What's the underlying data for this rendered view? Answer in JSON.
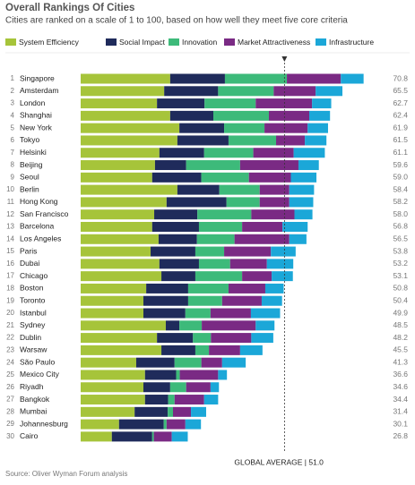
{
  "chart_data": {
    "type": "stacked_bar_horizontal",
    "title": "Overall Rankings Of Cities",
    "subtitle": "Cities are ranked on a scale of 1 to 100, based on how well they meet five core criteria",
    "source": "Source: Oliver Wyman Forum analysis",
    "ranks": [
      1,
      2,
      3,
      4,
      5,
      6,
      7,
      8,
      9,
      10,
      11,
      12,
      13,
      14,
      15,
      16,
      17,
      18,
      19,
      20,
      21,
      22,
      23,
      24,
      25,
      26,
      27,
      28,
      29,
      30
    ],
    "categories": [
      "Singapore",
      "Amsterdam",
      "London",
      "Shanghai",
      "New York",
      "Tokyo",
      "Helsinki",
      "Beijing",
      "Seoul",
      "Berlin",
      "Hong Kong",
      "San Francisco",
      "Barcelona",
      "Los Angeles",
      "Paris",
      "Dubai",
      "Chicago",
      "Boston",
      "Toronto",
      "Istanbul",
      "Sydney",
      "Dublin",
      "Warsaw",
      "São Paulo",
      "Mexico City",
      "Riyadh",
      "Bangkok",
      "Mumbai",
      "Johannesburg",
      "Cairo"
    ],
    "totals": [
      70.8,
      65.5,
      62.7,
      62.4,
      61.9,
      61.5,
      61.1,
      59.6,
      59.0,
      58.4,
      58.2,
      58.0,
      56.8,
      56.5,
      53.8,
      53.2,
      53.1,
      50.8,
      50.4,
      49.9,
      48.5,
      48.2,
      45.5,
      41.3,
      36.6,
      34.6,
      34.4,
      31.4,
      30.1,
      26.8
    ],
    "total_labels": [
      "70.8",
      "65.5",
      "62.7",
      "62.4",
      "61.9",
      "61.5",
      "61.1",
      "59.6",
      "59.0",
      "58.4",
      "58.2",
      "58.0",
      "56.8",
      "56.5",
      "53.8",
      "53.2",
      "53.1",
      "50.8",
      "50.4",
      "49.9",
      "48.5",
      "48.2",
      "45.5",
      "41.3",
      "36.6",
      "34.6",
      "34.4",
      "31.4",
      "30.1",
      "26.8"
    ],
    "series": [
      {
        "name": "System Efficiency",
        "color": "#a6c43a",
        "values": [
          22.4,
          20.9,
          19.1,
          22.4,
          24.7,
          24.2,
          19.7,
          18.6,
          17.9,
          24.2,
          21.5,
          18.4,
          17.9,
          19.5,
          17.5,
          19.7,
          20.2,
          16.4,
          15.7,
          15.7,
          21.3,
          19.1,
          20.2,
          13.9,
          16.1,
          15.7,
          16.1,
          13.5,
          9.6,
          7.8
        ]
      },
      {
        "name": "Social Impact",
        "color": "#1f2b5b",
        "values": [
          13.7,
          13.5,
          11.9,
          10.8,
          11.2,
          12.8,
          11.2,
          7.8,
          12.3,
          10.5,
          15.0,
          10.8,
          11.7,
          9.6,
          11.2,
          9.9,
          8.5,
          10.5,
          11.2,
          10.5,
          3.4,
          9.0,
          8.5,
          9.6,
          7.8,
          6.7,
          5.8,
          8.3,
          11.2,
          10.1
        ]
      },
      {
        "name": "Innovation",
        "color": "#3dba7a",
        "values": [
          15.5,
          13.9,
          12.8,
          13.9,
          10.1,
          11.9,
          12.3,
          13.5,
          11.9,
          10.1,
          8.3,
          13.5,
          10.8,
          9.4,
          7.2,
          7.8,
          11.7,
          10.1,
          8.5,
          6.3,
          5.6,
          4.5,
          3.4,
          6.7,
          0.9,
          4.0,
          1.6,
          1.3,
          0.7,
          0.4
        ]
      },
      {
        "name": "Market Attractiveness",
        "color": "#7a2a84",
        "values": [
          13.5,
          10.5,
          14.1,
          10.1,
          10.8,
          7.2,
          10.1,
          14.6,
          10.5,
          7.4,
          7.4,
          10.8,
          10.1,
          13.7,
          11.7,
          9.2,
          7.4,
          9.2,
          9.9,
          10.1,
          13.5,
          10.1,
          7.8,
          5.2,
          9.6,
          6.1,
          7.4,
          4.5,
          4.7,
          4.5
        ]
      },
      {
        "name": "Infrastructure",
        "color": "#1ba7d8",
        "values": [
          5.7,
          6.7,
          4.8,
          5.2,
          5.1,
          5.4,
          7.8,
          5.1,
          6.4,
          6.2,
          6.0,
          4.5,
          6.3,
          4.3,
          6.2,
          6.6,
          5.3,
          4.6,
          5.1,
          7.3,
          4.7,
          5.5,
          5.6,
          5.9,
          2.2,
          2.1,
          3.5,
          3.8,
          3.9,
          4.0
        ]
      }
    ],
    "xlim": [
      0,
      72
    ],
    "average": 51.0,
    "average_label": "GLOBAL AVERAGE | 51.0"
  }
}
